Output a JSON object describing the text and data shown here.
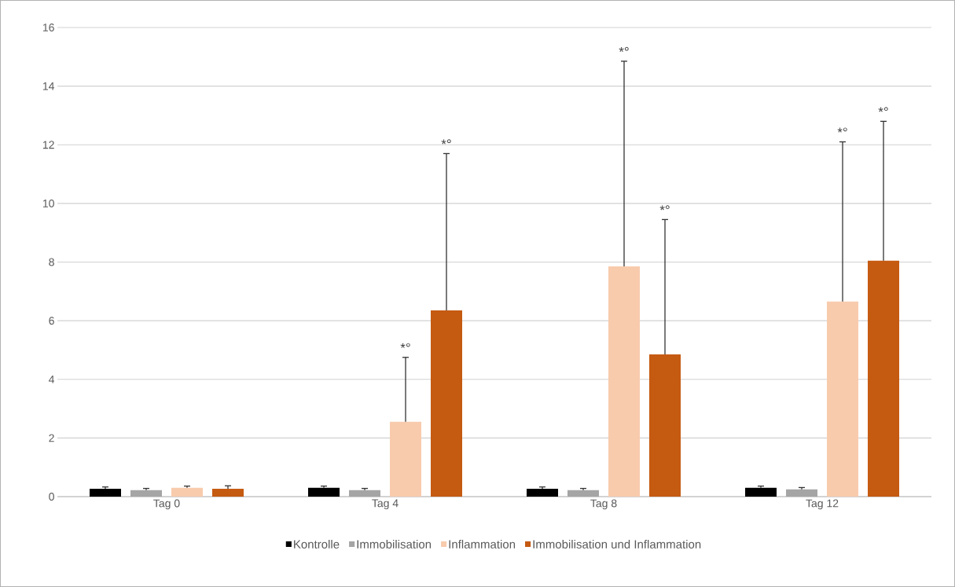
{
  "chart_data": {
    "type": "bar",
    "categories": [
      "Tag 0",
      "Tag 4",
      "Tag 8",
      "Tag 12"
    ],
    "series": [
      {
        "name": "Kontrolle",
        "color": "#000000",
        "values": [
          0.27,
          0.3,
          0.27,
          0.3
        ],
        "errors": [
          0.06,
          0.06,
          0.06,
          0.06
        ]
      },
      {
        "name": "Immobilisation",
        "color": "#a5a5a5",
        "values": [
          0.22,
          0.22,
          0.22,
          0.25
        ],
        "errors": [
          0.06,
          0.06,
          0.06,
          0.06
        ]
      },
      {
        "name": "Inflammation",
        "color": "#f8cbad",
        "values": [
          0.3,
          2.55,
          7.85,
          6.65
        ],
        "errors": [
          0.06,
          2.2,
          7.0,
          5.45
        ]
      },
      {
        "name": "Immobilisation und Inflammation",
        "color": "#c55a11",
        "values": [
          0.27,
          6.35,
          4.85,
          8.05
        ],
        "errors": [
          0.1,
          5.35,
          4.6,
          4.75
        ]
      }
    ],
    "annotations": [
      "*°",
      "*°",
      "*°",
      "*°",
      "*°",
      "*°"
    ],
    "ylim": [
      0,
      16
    ],
    "yticks": [
      0,
      2,
      4,
      6,
      8,
      10,
      12,
      14,
      16
    ],
    "grid": "y",
    "legend": "bottom"
  }
}
